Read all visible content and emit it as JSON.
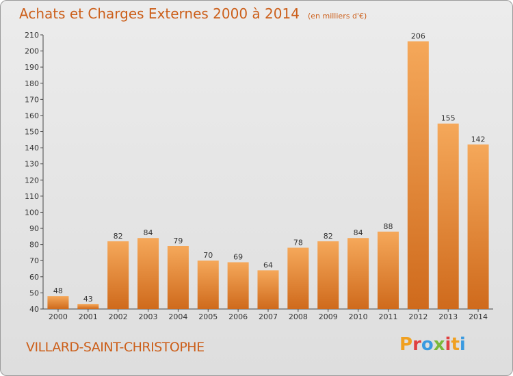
{
  "header": {
    "title": "Achats et Charges Externes 2000 à 2014",
    "unit": "(en milliers d'€)"
  },
  "footer": {
    "commune": "VILLARD-SAINT-CHRISTOPHE",
    "brand_letters": [
      "P",
      "r",
      "o",
      "x",
      "i",
      "t",
      "i"
    ],
    "brand_colors": [
      "#f0a020",
      "#e04040",
      "#3a9ae0",
      "#7ab83a",
      "#e04040",
      "#f0a020",
      "#3a9ae0"
    ]
  },
  "colors": {
    "bar_light": "#f5a85a",
    "bar_dark": "#cf6a1c",
    "accent": "#cc5f1a"
  },
  "chart_data": {
    "type": "bar",
    "title": "Achats et Charges Externes 2000 à 2014",
    "subtitle": "(en milliers d'€)",
    "categories": [
      "2000",
      "2001",
      "2002",
      "2003",
      "2004",
      "2005",
      "2006",
      "2007",
      "2008",
      "2009",
      "2010",
      "2011",
      "2012",
      "2013",
      "2014"
    ],
    "values": [
      48,
      43,
      82,
      84,
      79,
      70,
      69,
      64,
      78,
      82,
      84,
      88,
      206,
      155,
      142
    ],
    "ylim": [
      40,
      210
    ],
    "yticks": [
      40,
      50,
      60,
      70,
      80,
      90,
      100,
      110,
      120,
      130,
      140,
      150,
      160,
      170,
      180,
      190,
      200,
      210
    ],
    "grid": false,
    "legend": "none"
  }
}
